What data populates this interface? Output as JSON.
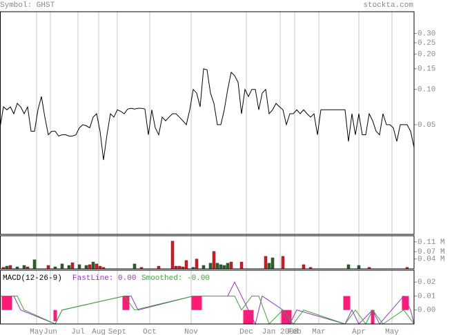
{
  "header": {
    "symbol": "Symbol: GHST",
    "site": "stockta.com"
  },
  "chart_data": [
    {
      "type": "line",
      "log_scale": true,
      "ylim": [
        0.0058,
        0.46
      ],
      "yticks": [
        {
          "value": 0.3,
          "label": "0.30"
        },
        0.25,
        {
          "value": 0.2,
          "label": "0.20"
        },
        0.15,
        {
          "value": 0.1,
          "label": "0.10"
        },
        0.05
      ],
      "xlim": [
        0,
        120
      ],
      "series": [
        {
          "color": "#000000",
          "x": [
            0,
            1,
            2,
            3,
            4,
            5,
            6,
            7,
            8,
            9,
            10,
            11,
            12,
            13,
            14,
            15,
            16,
            17,
            18,
            19,
            20,
            21,
            22,
            23,
            24,
            25,
            26,
            27,
            28,
            29,
            30,
            31,
            32,
            33,
            34,
            35,
            36,
            37,
            38,
            39,
            40,
            41,
            42,
            43,
            44,
            45,
            46,
            47,
            48,
            49,
            50,
            51,
            52,
            53,
            54,
            55,
            56,
            57,
            58,
            59,
            60,
            61,
            62,
            63,
            64,
            65,
            66,
            67,
            68,
            69,
            70,
            71,
            72,
            73,
            74,
            75,
            76,
            77,
            78,
            79,
            80,
            81,
            82,
            83,
            84,
            85,
            86,
            87,
            88,
            89,
            90,
            91,
            92,
            93,
            94,
            95,
            96,
            97,
            98,
            99,
            100,
            101,
            102,
            103,
            104,
            105,
            106,
            107,
            108,
            109,
            110,
            111,
            112,
            113,
            114,
            115,
            116,
            117,
            118,
            119,
            120
          ],
          "values": [
            0.047,
            0.071,
            0.067,
            0.071,
            0.062,
            0.076,
            0.071,
            0.062,
            0.071,
            0.044,
            0.044,
            0.067,
            0.087,
            0.058,
            0.041,
            0.044,
            0.044,
            0.04,
            0.041,
            0.041,
            0.04,
            0.04,
            0.041,
            0.047,
            0.05,
            0.049,
            0.047,
            0.058,
            0.062,
            0.044,
            0.025,
            0.041,
            0.062,
            0.058,
            0.067,
            0.065,
            0.062,
            0.068,
            0.069,
            0.068,
            0.069,
            0.069,
            0.068,
            0.041,
            0.067,
            0.047,
            0.041,
            0.058,
            0.054,
            0.058,
            0.062,
            0.062,
            0.058,
            0.054,
            0.05,
            0.067,
            0.1,
            0.093,
            0.071,
            0.15,
            0.147,
            0.093,
            0.076,
            0.05,
            0.05,
            0.067,
            0.1,
            0.14,
            0.131,
            0.115,
            0.062,
            0.1,
            0.087,
            0.1,
            0.1,
            0.067,
            0.093,
            0.1,
            0.062,
            0.067,
            0.076,
            0.071,
            0.067,
            0.05,
            0.062,
            0.062,
            0.067,
            0.062,
            0.067,
            0.062,
            0.058,
            0.062,
            0.041,
            0.067,
            0.067,
            0.067,
            0.067,
            0.067,
            0.067,
            0.067,
            0.067,
            0.036,
            0.062,
            0.041,
            0.062,
            0.041,
            0.041,
            0.062,
            0.054,
            0.044,
            0.041,
            0.062,
            0.05,
            0.05,
            0.047,
            0.036,
            0.05,
            0.05,
            0.05,
            0.044,
            0.032
          ]
        }
      ]
    },
    {
      "type": "bar",
      "ylim": [
        0,
        0.135
      ],
      "xlim": [
        0,
        120
      ],
      "yticks": [
        {
          "value": 0.11,
          "label": "0.11 M"
        },
        {
          "value": 0.07,
          "label": "0.07 M"
        },
        {
          "value": 0.04,
          "label": "0.04 M"
        }
      ],
      "series": [
        {
          "color": "#226622",
          "x": [
            2,
            5,
            7,
            10,
            16,
            18,
            20,
            23,
            25,
            27,
            39,
            56,
            59,
            61,
            63,
            64,
            65,
            66,
            78,
            79,
            101,
            104
          ],
          "values": [
            0.011,
            0.008,
            0.014,
            0.037,
            0.008,
            0.02,
            0.014,
            0.017,
            0.014,
            0.028,
            0.02,
            0.006,
            0.014,
            0.023,
            0.023,
            0.017,
            0.014,
            0.023,
            0.023,
            0.045,
            0.017,
            0.014
          ]
        },
        {
          "color": "#e0141c",
          "x": [
            1,
            3,
            8,
            14,
            21,
            26,
            28,
            29,
            30,
            41,
            46,
            50,
            51,
            52,
            53,
            54,
            57,
            62,
            67,
            70,
            77,
            82,
            88,
            90,
            107,
            118
          ],
          "values": [
            0.006,
            0.014,
            0.008,
            0.014,
            0.025,
            0.017,
            0.02,
            0.011,
            0.006,
            0.006,
            0.011,
            0.113,
            0.011,
            0.011,
            0.008,
            0.034,
            0.04,
            0.071,
            0.028,
            0.028,
            0.051,
            0.051,
            0.017,
            0.006,
            0.006,
            0.006
          ]
        }
      ]
    },
    {
      "type": "macd",
      "title": "MACD(12-26-9)",
      "ylim": [
        -0.01,
        0.0285
      ],
      "xlim": [
        0,
        120
      ],
      "yticks": [
        0.02,
        0.01,
        {
          "value": 0,
          "label": "0.00"
        }
      ],
      "xticks": [
        {
          "value": 10.6,
          "label": "May"
        },
        {
          "value": 14.6,
          "label": "Jun"
        },
        {
          "value": 22.6,
          "label": "Jul"
        },
        {
          "value": 28.6,
          "label": "Aug"
        },
        {
          "value": 34,
          "label": "Sept"
        },
        {
          "value": 43.4,
          "label": "Oct"
        },
        {
          "value": 55.4,
          "label": "Nov"
        },
        {
          "value": 71.4,
          "label": "Dec"
        },
        {
          "value": 81.2,
          "label": "Jan 2008"
        },
        {
          "value": 85.4,
          "label": "Feb"
        },
        {
          "value": 92.4,
          "label": "Mar"
        },
        {
          "value": 104,
          "label": "Apr"
        },
        {
          "value": 113.6,
          "label": "May"
        }
      ],
      "histogram": {
        "color": "#ff1a75",
        "x": [
          1,
          2,
          3,
          16,
          36,
          37,
          56,
          57,
          58,
          71,
          72,
          73,
          82,
          83,
          84,
          100,
          101,
          108,
          117,
          118
        ],
        "values": [
          0.01,
          0.01,
          0.01,
          -0.008,
          0.01,
          0.01,
          0.01,
          0.01,
          0.01,
          -0.01,
          -0.01,
          -0.01,
          -0.01,
          -0.01,
          -0.01,
          0.01,
          0.01,
          -0.01,
          0.01,
          0.01
        ]
      },
      "series": [
        {
          "name": "FastLine: 0.00",
          "color": "#9933cc",
          "x": [
            0,
            4,
            6,
            16,
            18,
            36,
            38,
            40,
            56,
            60,
            66,
            68,
            70,
            72,
            74,
            76,
            82,
            84,
            86,
            100,
            102,
            104,
            108,
            110,
            117,
            119,
            120
          ],
          "values": [
            0.01,
            0.01,
            0,
            -0.01,
            0,
            0.01,
            0.01,
            0,
            0.01,
            0.01,
            0.01,
            0.02,
            0.01,
            0,
            -0.01,
            0.01,
            0,
            -0.01,
            0,
            -0.01,
            0,
            -0.01,
            0,
            -0.01,
            0.01,
            0,
            -0.01
          ]
        },
        {
          "name": "Smoothed: -0.00",
          "color": "#33aa33",
          "x": [
            0,
            5,
            7,
            16,
            18,
            36,
            39,
            56,
            60,
            68,
            70,
            73,
            75,
            78,
            82,
            85,
            88,
            100,
            103,
            106,
            108,
            111,
            117,
            120
          ],
          "values": [
            0.01,
            0.01,
            0,
            -0.01,
            0,
            0.01,
            0,
            0.01,
            0.01,
            0.01,
            0,
            0.01,
            0.01,
            -0.01,
            0,
            -0.01,
            0,
            -0.01,
            0,
            -0.01,
            0,
            -0.01,
            0,
            -0.01
          ]
        }
      ]
    }
  ]
}
